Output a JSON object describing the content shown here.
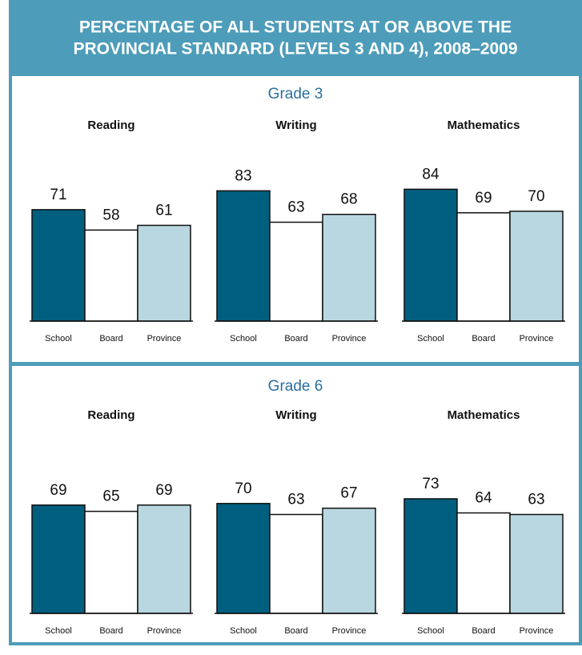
{
  "title": [
    "PERCENTAGE OF ALL STUDENTS AT OR ABOVE THE",
    "PROVINCIAL STANDARD (LEVELS 3 AND 4), 2008–2009"
  ],
  "grades": [
    "Grade 3",
    "Grade 6"
  ],
  "chart_data": [
    {
      "type": "bar",
      "title": "Reading",
      "categories": [
        "School",
        "Board",
        "Province"
      ],
      "values": [
        71,
        58,
        61
      ],
      "colors": [
        "#005f7f",
        "#ffffff",
        "#b9d7e1"
      ]
    },
    {
      "type": "bar",
      "title": "Writing",
      "categories": [
        "School",
        "Board",
        "Province"
      ],
      "values": [
        83,
        63,
        68
      ],
      "colors": [
        "#005f7f",
        "#ffffff",
        "#b9d7e1"
      ]
    },
    {
      "type": "bar",
      "title": "Mathematics",
      "categories": [
        "School",
        "Board",
        "Province"
      ],
      "values": [
        84,
        69,
        70
      ],
      "colors": [
        "#005f7f",
        "#ffffff",
        "#b9d7e1"
      ]
    },
    {
      "type": "bar",
      "title": "Reading",
      "categories": [
        "School",
        "Board",
        "Province"
      ],
      "values": [
        69,
        65,
        69
      ],
      "colors": [
        "#005f7f",
        "#ffffff",
        "#b9d7e1"
      ]
    },
    {
      "type": "bar",
      "title": "Writing",
      "categories": [
        "School",
        "Board",
        "Province"
      ],
      "values": [
        70,
        63,
        67
      ],
      "colors": [
        "#005f7f",
        "#ffffff",
        "#b9d7e1"
      ]
    },
    {
      "type": "bar",
      "title": "Mathematics",
      "categories": [
        "School",
        "Board",
        "Province"
      ],
      "values": [
        73,
        64,
        63
      ],
      "colors": [
        "#005f7f",
        "#ffffff",
        "#b9d7e1"
      ]
    }
  ]
}
